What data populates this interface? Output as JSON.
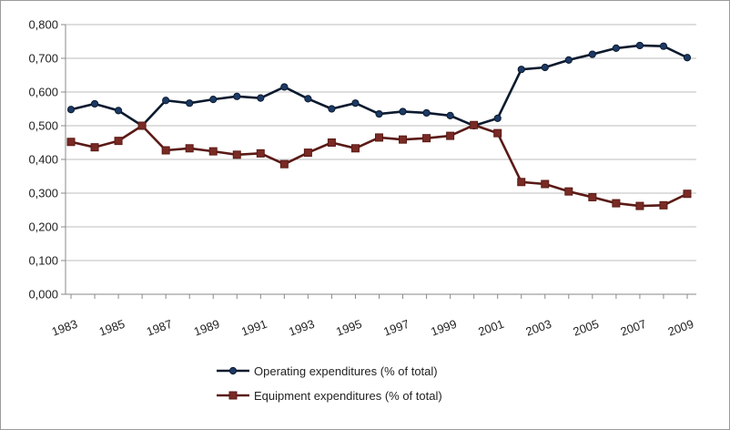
{
  "chart_data": {
    "type": "line",
    "title": "",
    "xlabel": "",
    "ylabel": "",
    "ylim": [
      0,
      0.8
    ],
    "y_ticks": [
      "0,000",
      "0,100",
      "0,200",
      "0,300",
      "0,400",
      "0,500",
      "0,600",
      "0,700",
      "0,800"
    ],
    "x": [
      1983,
      1984,
      1985,
      1986,
      1987,
      1988,
      1989,
      1990,
      1991,
      1992,
      1993,
      1994,
      1995,
      1996,
      1997,
      1998,
      1999,
      2000,
      2001,
      2002,
      2003,
      2004,
      2005,
      2006,
      2007,
      2008,
      2009
    ],
    "x_tick_labels": [
      "1983",
      "1985",
      "1987",
      "1989",
      "1991",
      "1993",
      "1995",
      "1997",
      "1999",
      "2001",
      "2003",
      "2005",
      "2007",
      "2009"
    ],
    "grid": "horizontal",
    "legend_position": "bottom",
    "series": [
      {
        "name": "Operating expenditures (% of total)",
        "color": "#0b1a2e",
        "marker": "circle",
        "values": [
          0.548,
          0.565,
          0.545,
          0.5,
          0.575,
          0.567,
          0.578,
          0.587,
          0.582,
          0.615,
          0.58,
          0.55,
          0.567,
          0.535,
          0.542,
          0.538,
          0.53,
          0.5,
          0.522,
          0.667,
          0.673,
          0.695,
          0.712,
          0.73,
          0.738,
          0.736,
          0.702
        ]
      },
      {
        "name": "Equipment expenditures (% of total)",
        "color": "#5a1a16",
        "marker": "square",
        "values": [
          0.452,
          0.436,
          0.455,
          0.5,
          0.427,
          0.433,
          0.424,
          0.414,
          0.418,
          0.386,
          0.42,
          0.45,
          0.433,
          0.465,
          0.459,
          0.463,
          0.47,
          0.502,
          0.478,
          0.333,
          0.327,
          0.305,
          0.288,
          0.27,
          0.262,
          0.264,
          0.298
        ]
      }
    ]
  }
}
